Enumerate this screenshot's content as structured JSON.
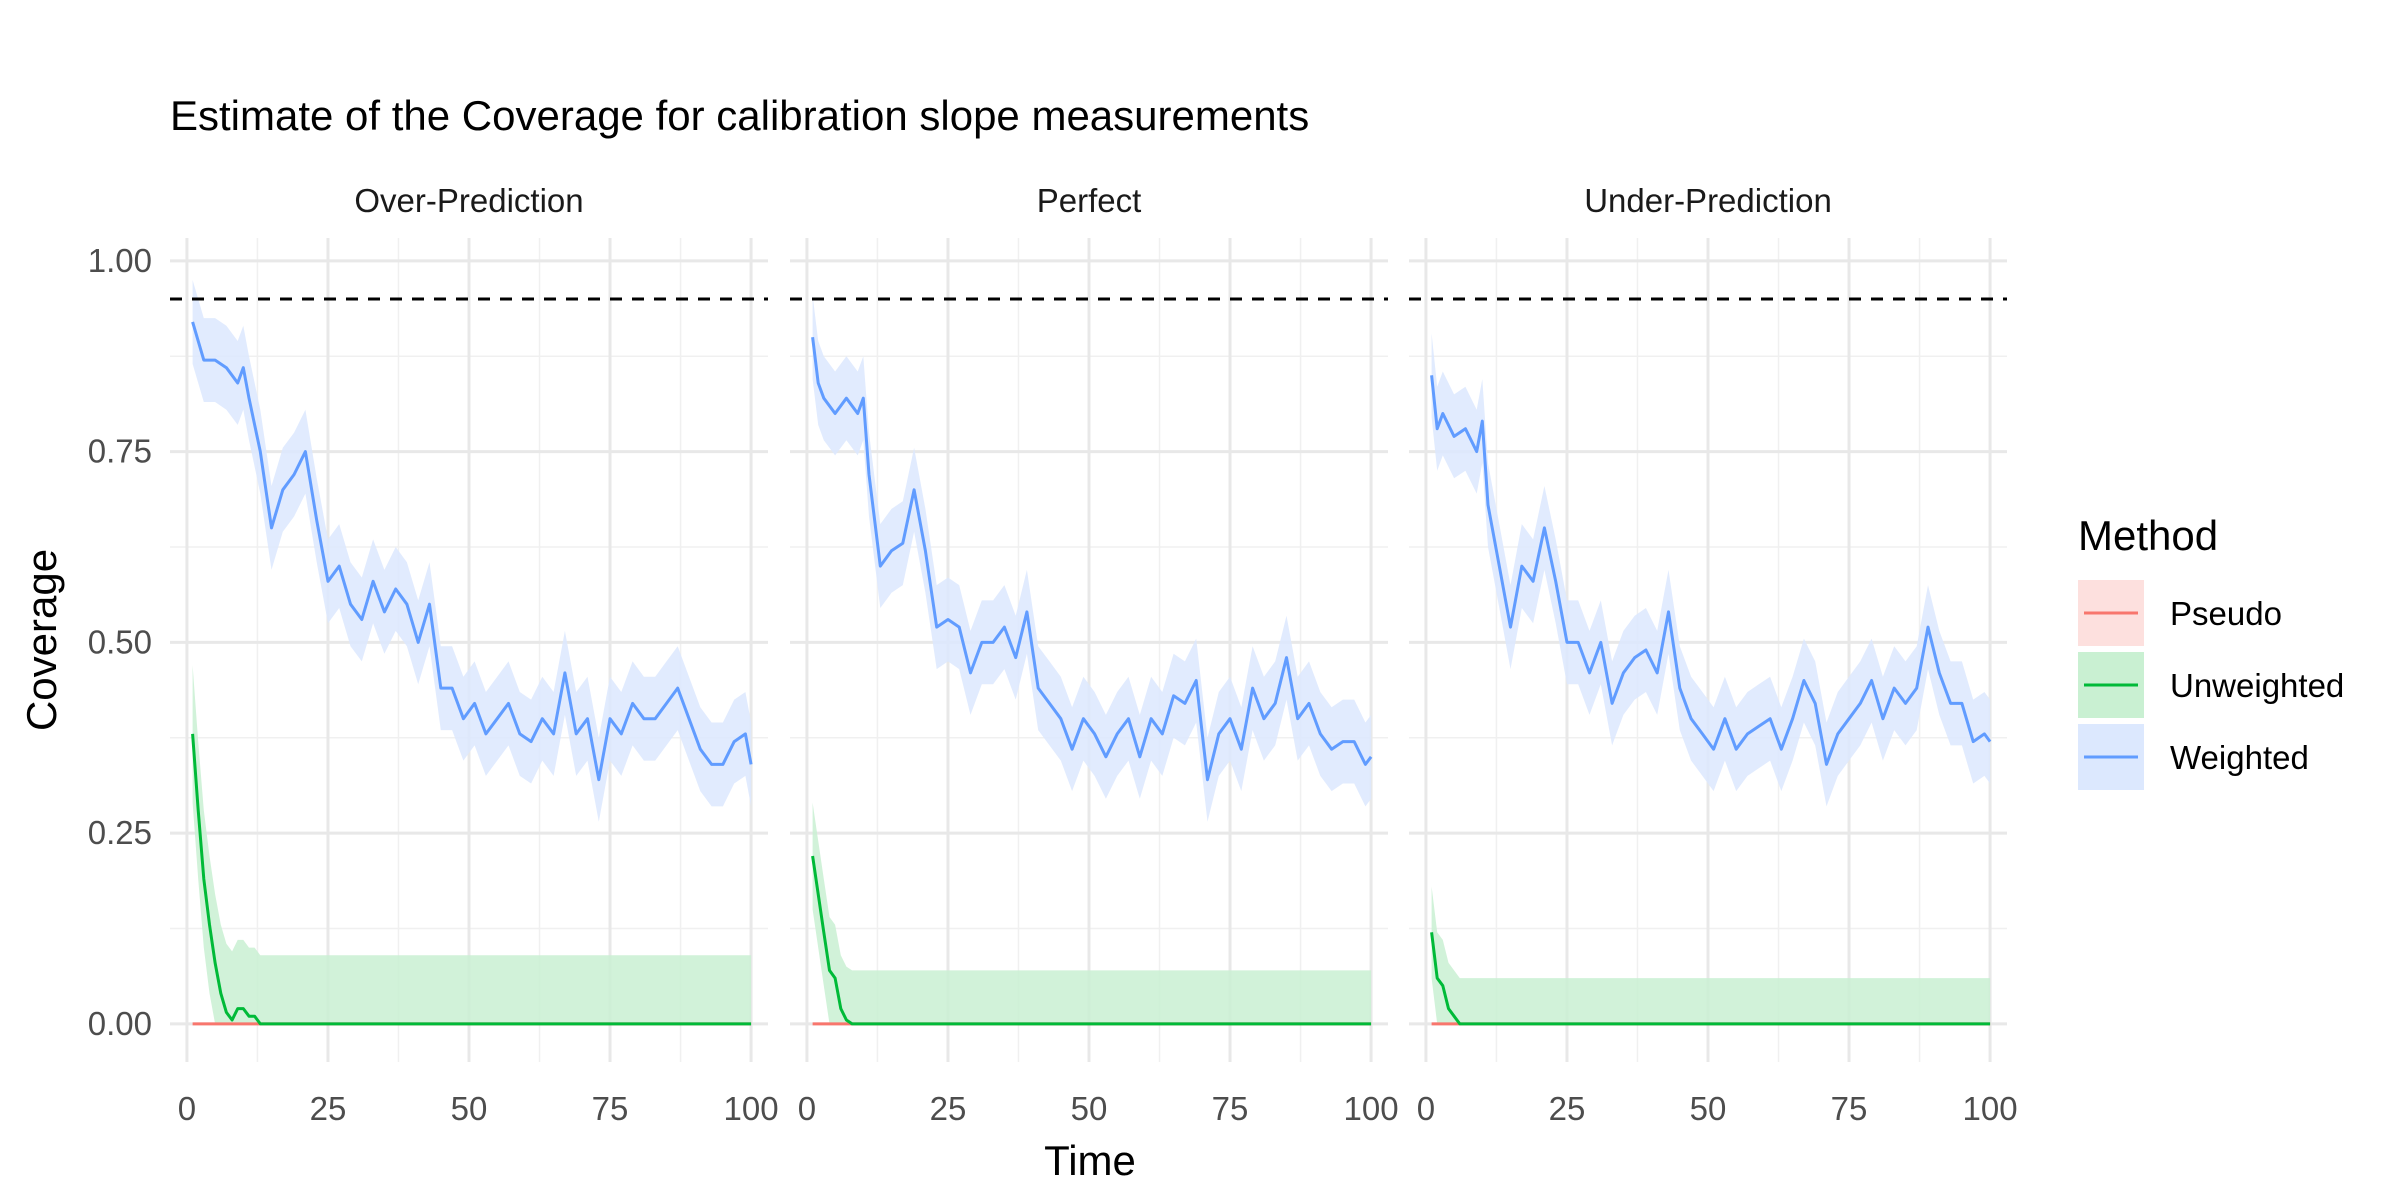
{
  "chart_data": {
    "type": "line",
    "title": "Estimate of the Coverage for calibration slope measurements",
    "xlabel": "Time",
    "ylabel": "Coverage",
    "xlim": [
      -3,
      103
    ],
    "ylim": [
      -0.05,
      1.03
    ],
    "x_ticks": [
      0,
      25,
      50,
      75,
      100
    ],
    "y_ticks": [
      0,
      0.25,
      0.5,
      0.75,
      1.0
    ],
    "y_tick_labels": [
      "0.00",
      "0.25",
      "0.50",
      "0.75",
      "1.00"
    ],
    "reference_line": {
      "y": 0.95,
      "style": "dashed",
      "color": "#000000"
    },
    "grid": true,
    "legend": {
      "title": "Method",
      "position": "right",
      "entries": [
        {
          "name": "Pseudo",
          "color": "#F8766D",
          "fill": "#FDE0DE"
        },
        {
          "name": "Unweighted",
          "color": "#00BA38",
          "fill": "#C9F0D2"
        },
        {
          "name": "Weighted",
          "color": "#619CFF",
          "fill": "#DCE8FE"
        }
      ]
    },
    "panels": [
      {
        "label": "Over-Prediction",
        "series": [
          {
            "name": "Weighted",
            "x": [
              1,
              3,
              5,
              7,
              9,
              10,
              11,
              13,
              15,
              17,
              19,
              21,
              23,
              25,
              27,
              29,
              31,
              33,
              35,
              37,
              39,
              41,
              43,
              45,
              47,
              49,
              51,
              53,
              55,
              57,
              59,
              61,
              63,
              65,
              67,
              69,
              71,
              73,
              75,
              77,
              79,
              81,
              83,
              85,
              87,
              89,
              91,
              93,
              95,
              97,
              99,
              100
            ],
            "y": [
              0.92,
              0.87,
              0.87,
              0.86,
              0.84,
              0.86,
              0.82,
              0.75,
              0.65,
              0.7,
              0.72,
              0.75,
              0.66,
              0.58,
              0.6,
              0.55,
              0.53,
              0.58,
              0.54,
              0.57,
              0.55,
              0.5,
              0.55,
              0.44,
              0.44,
              0.4,
              0.42,
              0.38,
              0.4,
              0.42,
              0.38,
              0.37,
              0.4,
              0.38,
              0.46,
              0.38,
              0.4,
              0.32,
              0.4,
              0.38,
              0.42,
              0.4,
              0.4,
              0.42,
              0.44,
              0.4,
              0.36,
              0.34,
              0.34,
              0.37,
              0.38,
              0.34
            ],
            "band": 0.055
          },
          {
            "name": "Unweighted",
            "x": [
              1,
              2,
              3,
              4,
              5,
              6,
              7,
              8,
              9,
              10,
              11,
              12,
              13,
              14,
              100
            ],
            "y": [
              0.38,
              0.28,
              0.19,
              0.13,
              0.08,
              0.04,
              0.015,
              0.005,
              0.02,
              0.02,
              0.01,
              0.01,
              0.0,
              0.0,
              0.0
            ],
            "band": 0.09
          },
          {
            "name": "Pseudo",
            "x": [
              1,
              100
            ],
            "y": [
              0.0,
              0.0
            ],
            "band": 0.0
          }
        ]
      },
      {
        "label": "Perfect",
        "series": [
          {
            "name": "Weighted",
            "x": [
              1,
              2,
              3,
              5,
              7,
              9,
              10,
              11,
              13,
              15,
              17,
              19,
              21,
              23,
              25,
              27,
              29,
              31,
              33,
              35,
              37,
              39,
              41,
              43,
              45,
              47,
              49,
              51,
              53,
              55,
              57,
              59,
              61,
              63,
              65,
              67,
              69,
              71,
              73,
              75,
              77,
              79,
              81,
              83,
              85,
              87,
              89,
              91,
              93,
              95,
              97,
              99,
              100
            ],
            "y": [
              0.9,
              0.84,
              0.82,
              0.8,
              0.82,
              0.8,
              0.82,
              0.72,
              0.6,
              0.62,
              0.63,
              0.7,
              0.62,
              0.52,
              0.53,
              0.52,
              0.46,
              0.5,
              0.5,
              0.52,
              0.48,
              0.54,
              0.44,
              0.42,
              0.4,
              0.36,
              0.4,
              0.38,
              0.35,
              0.38,
              0.4,
              0.35,
              0.4,
              0.38,
              0.43,
              0.42,
              0.45,
              0.32,
              0.38,
              0.4,
              0.36,
              0.44,
              0.4,
              0.42,
              0.48,
              0.4,
              0.42,
              0.38,
              0.36,
              0.37,
              0.37,
              0.34,
              0.35
            ],
            "band": 0.055
          },
          {
            "name": "Unweighted",
            "x": [
              1,
              2,
              3,
              4,
              5,
              6,
              7,
              8,
              100
            ],
            "y": [
              0.22,
              0.17,
              0.12,
              0.07,
              0.06,
              0.02,
              0.005,
              0.0,
              0.0
            ],
            "band": 0.07
          },
          {
            "name": "Pseudo",
            "x": [
              1,
              100
            ],
            "y": [
              0.0,
              0.0
            ],
            "band": 0.0
          }
        ]
      },
      {
        "label": "Under-Prediction",
        "series": [
          {
            "name": "Weighted",
            "x": [
              1,
              2,
              3,
              5,
              7,
              9,
              10,
              11,
              13,
              15,
              17,
              19,
              21,
              23,
              25,
              27,
              29,
              31,
              33,
              35,
              37,
              39,
              41,
              43,
              45,
              47,
              49,
              51,
              53,
              55,
              57,
              59,
              61,
              63,
              65,
              67,
              69,
              71,
              73,
              75,
              77,
              79,
              81,
              83,
              85,
              87,
              89,
              91,
              93,
              95,
              97,
              99,
              100
            ],
            "y": [
              0.85,
              0.78,
              0.8,
              0.77,
              0.78,
              0.75,
              0.79,
              0.68,
              0.6,
              0.52,
              0.6,
              0.58,
              0.65,
              0.58,
              0.5,
              0.5,
              0.46,
              0.5,
              0.42,
              0.46,
              0.48,
              0.49,
              0.46,
              0.54,
              0.44,
              0.4,
              0.38,
              0.36,
              0.4,
              0.36,
              0.38,
              0.39,
              0.4,
              0.36,
              0.4,
              0.45,
              0.42,
              0.34,
              0.38,
              0.4,
              0.42,
              0.45,
              0.4,
              0.44,
              0.42,
              0.44,
              0.52,
              0.46,
              0.42,
              0.42,
              0.37,
              0.38,
              0.37
            ],
            "band": 0.055
          },
          {
            "name": "Unweighted",
            "x": [
              1,
              2,
              3,
              4,
              5,
              6,
              7,
              100
            ],
            "y": [
              0.12,
              0.06,
              0.05,
              0.02,
              0.01,
              0.0,
              0.0,
              0.0
            ],
            "band": 0.06
          },
          {
            "name": "Pseudo",
            "x": [
              1,
              100
            ],
            "y": [
              0.0,
              0.0
            ],
            "band": 0.0
          }
        ]
      }
    ]
  }
}
